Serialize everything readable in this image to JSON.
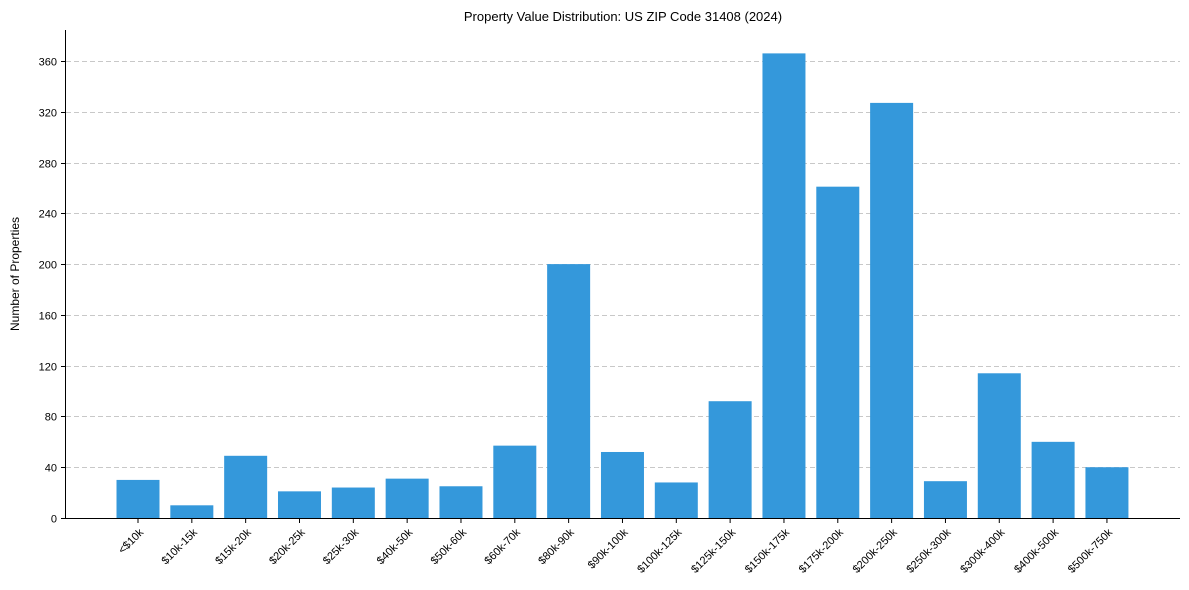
{
  "chart_data": {
    "type": "bar",
    "title": "Property Value Distribution: US ZIP Code 31408 (2024)",
    "xlabel": "",
    "ylabel": "Number of Properties",
    "ylim": [
      0,
      384
    ],
    "yticks": [
      0,
      40,
      80,
      120,
      160,
      200,
      240,
      280,
      320,
      360
    ],
    "grid": "y-dashed",
    "bar_color": "#3498db",
    "categories": [
      "<$10k",
      "$10k-15k",
      "$15k-20k",
      "$20k-25k",
      "$25k-30k",
      "$40k-50k",
      "$50k-60k",
      "$60k-70k",
      "$80k-90k",
      "$90k-100k",
      "$100k-125k",
      "$125k-150k",
      "$150k-175k",
      "$175k-200k",
      "$200k-250k",
      "$250k-300k",
      "$300k-400k",
      "$400k-500k",
      "$500k-750k"
    ],
    "values": [
      30,
      10,
      49,
      21,
      24,
      31,
      25,
      57,
      200,
      52,
      28,
      92,
      366,
      261,
      327,
      29,
      114,
      60,
      40
    ]
  }
}
